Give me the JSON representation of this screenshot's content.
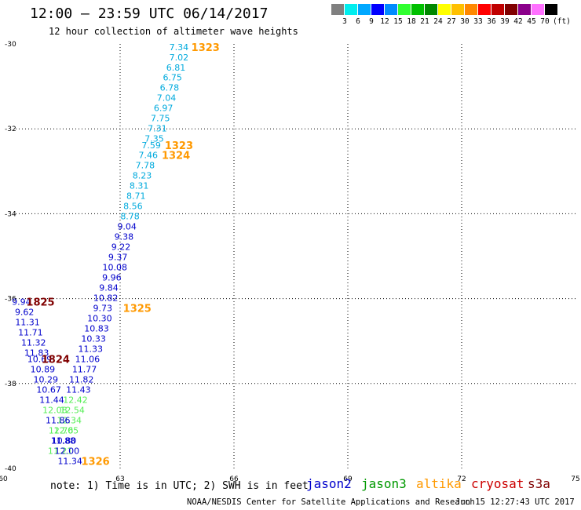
{
  "header": {
    "title": "12:00 – 23:59 UTC 06/14/2017",
    "subtitle": "12 hour collection of altimeter wave heights"
  },
  "color_scale": {
    "labels": [
      "3",
      "6",
      "9",
      "12",
      "15",
      "18",
      "21",
      "24",
      "27",
      "30",
      "33",
      "36",
      "39",
      "42",
      "45",
      "70"
    ],
    "unit": "(ft)",
    "colors": [
      "#808080",
      "#00eeee",
      "#00a8ff",
      "#0000ff",
      "#008bff",
      "#30ff30",
      "#00c000",
      "#008800",
      "#ffff00",
      "#ffc000",
      "#ff8800",
      "#ff0000",
      "#c00000",
      "#800000",
      "#8b008b",
      "#ff70ff",
      "#000000"
    ]
  },
  "footer": {
    "note": "note: 1) Time is in UTC; 2) SWH is in feet",
    "credit": "NOAA/NESDIS Center for Satellite Applications and Research",
    "timestamp": "Jun 15 12:27:43 UTC 2017"
  },
  "legend": [
    {
      "name": "jason2",
      "color": "#0000cc"
    },
    {
      "name": "jason3",
      "color": "#009900"
    },
    {
      "name": "altika",
      "color": "#ff9900"
    },
    {
      "name": "cryosat",
      "color": "#cc0000"
    },
    {
      "name": "s3a",
      "color": "#800000"
    }
  ],
  "chart_data": {
    "type": "scatter",
    "title": "12:00 – 23:59 UTC 06/14/2017",
    "subtitle": "12 hour collection of altimeter wave heights",
    "xlim": [
      60,
      75
    ],
    "ylim": [
      -40,
      -30
    ],
    "xticks": [
      "60",
      "63",
      "66",
      "69",
      "72",
      "75"
    ],
    "yticks": [
      "-30",
      "-32",
      "-34",
      "-36",
      "-38",
      "-40"
    ],
    "grid": true,
    "points": [
      {
        "x": 64.55,
        "y": -30.07,
        "label": "7.34",
        "color": "#00aadd"
      },
      {
        "x": 64.55,
        "y": -30.31,
        "label": "7.02",
        "color": "#00aadd"
      },
      {
        "x": 64.47,
        "y": -30.55,
        "label": "6.81",
        "color": "#00aadd"
      },
      {
        "x": 64.38,
        "y": -30.79,
        "label": "6.75",
        "color": "#00aadd"
      },
      {
        "x": 64.3,
        "y": -31.03,
        "label": "6.78",
        "color": "#00aadd"
      },
      {
        "x": 64.22,
        "y": -31.27,
        "label": "7.04",
        "color": "#00aadd"
      },
      {
        "x": 64.14,
        "y": -31.51,
        "label": "6.97",
        "color": "#00aadd"
      },
      {
        "x": 64.06,
        "y": -31.75,
        "label": "7.75",
        "color": "#00aadd"
      },
      {
        "x": 63.98,
        "y": -31.99,
        "label": "7.31",
        "color": "#00aadd"
      },
      {
        "x": 63.9,
        "y": -32.23,
        "label": "7.35",
        "color": "#00aadd"
      },
      {
        "x": 63.82,
        "y": -32.38,
        "label": "7.59",
        "color": "#00aadd"
      },
      {
        "x": 63.74,
        "y": -32.62,
        "label": "7.46",
        "color": "#00aadd"
      },
      {
        "x": 63.66,
        "y": -32.86,
        "label": "7.78",
        "color": "#00aadd"
      },
      {
        "x": 63.58,
        "y": -33.1,
        "label": "8.23",
        "color": "#00aadd"
      },
      {
        "x": 63.5,
        "y": -33.34,
        "label": "8.31",
        "color": "#00aadd"
      },
      {
        "x": 63.42,
        "y": -33.58,
        "label": "8.71",
        "color": "#00aadd"
      },
      {
        "x": 63.34,
        "y": -33.82,
        "label": "8.56",
        "color": "#00aadd"
      },
      {
        "x": 63.26,
        "y": -34.06,
        "label": "8.78",
        "color": "#00aadd"
      },
      {
        "x": 63.18,
        "y": -34.3,
        "label": "9.04",
        "color": "#0000cc"
      },
      {
        "x": 63.1,
        "y": -34.54,
        "label": "9.38",
        "color": "#0000cc"
      },
      {
        "x": 63.02,
        "y": -34.78,
        "label": "9.22",
        "color": "#0000cc"
      },
      {
        "x": 62.94,
        "y": -35.02,
        "label": "9.37",
        "color": "#0000cc"
      },
      {
        "x": 62.86,
        "y": -35.26,
        "label": "10.08",
        "color": "#0000cc"
      },
      {
        "x": 62.78,
        "y": -35.5,
        "label": "9.96",
        "color": "#0000cc"
      },
      {
        "x": 62.7,
        "y": -35.74,
        "label": "9.84",
        "color": "#0000cc"
      },
      {
        "x": 62.62,
        "y": -35.98,
        "label": "10.82",
        "color": "#0000cc"
      },
      {
        "x": 62.54,
        "y": -36.22,
        "label": "9.73",
        "color": "#0000cc"
      },
      {
        "x": 62.46,
        "y": -36.46,
        "label": "10.30",
        "color": "#0000cc"
      },
      {
        "x": 62.38,
        "y": -36.7,
        "label": "10.83",
        "color": "#0000cc"
      },
      {
        "x": 62.3,
        "y": -36.94,
        "label": "10.33",
        "color": "#0000cc"
      },
      {
        "x": 62.22,
        "y": -37.18,
        "label": "11.33",
        "color": "#0000cc"
      },
      {
        "x": 62.14,
        "y": -37.42,
        "label": "11.06",
        "color": "#0000cc"
      },
      {
        "x": 62.06,
        "y": -37.66,
        "label": "11.77",
        "color": "#0000cc"
      },
      {
        "x": 61.98,
        "y": -37.9,
        "label": "11.82",
        "color": "#0000cc"
      },
      {
        "x": 61.9,
        "y": -38.14,
        "label": "11.43",
        "color": "#0000cc"
      },
      {
        "x": 61.82,
        "y": -38.38,
        "label": "12.42",
        "color": "#55ee55"
      },
      {
        "x": 61.74,
        "y": -38.62,
        "label": "12.54",
        "color": "#55ee55"
      },
      {
        "x": 61.66,
        "y": -38.86,
        "label": "12.34",
        "color": "#55ee55"
      },
      {
        "x": 61.58,
        "y": -39.1,
        "label": "12.05",
        "color": "#55ee55"
      },
      {
        "x": 61.5,
        "y": -39.34,
        "label": "11.88",
        "color": "#0000cc"
      },
      {
        "x": 61.42,
        "y": -39.58,
        "label": "11.21",
        "color": "#55ee55"
      },
      {
        "x": 60.4,
        "y": -36.07,
        "label": "9.94",
        "color": "#0000cc"
      },
      {
        "x": 60.48,
        "y": -36.31,
        "label": "9.62",
        "color": "#0000cc"
      },
      {
        "x": 60.56,
        "y": -36.55,
        "label": "11.31",
        "color": "#0000cc"
      },
      {
        "x": 60.64,
        "y": -36.79,
        "label": "11.71",
        "color": "#0000cc"
      },
      {
        "x": 60.72,
        "y": -37.03,
        "label": "11.32",
        "color": "#0000cc"
      },
      {
        "x": 60.8,
        "y": -37.27,
        "label": "11.83",
        "color": "#0000cc"
      },
      {
        "x": 60.88,
        "y": -37.42,
        "label": "10.69",
        "color": "#0000cc"
      },
      {
        "x": 60.96,
        "y": -37.66,
        "label": "10.89",
        "color": "#0000cc"
      },
      {
        "x": 61.04,
        "y": -37.9,
        "label": "10.29",
        "color": "#0000cc"
      },
      {
        "x": 61.12,
        "y": -38.14,
        "label": "10.67",
        "color": "#0000cc"
      },
      {
        "x": 61.2,
        "y": -38.38,
        "label": "11.44",
        "color": "#0000cc"
      },
      {
        "x": 61.28,
        "y": -38.62,
        "label": "12.08",
        "color": "#55ee55"
      },
      {
        "x": 61.36,
        "y": -38.86,
        "label": "11.86",
        "color": "#0000cc"
      },
      {
        "x": 61.44,
        "y": -39.1,
        "label": "12.76",
        "color": "#55ee55"
      },
      {
        "x": 61.52,
        "y": -39.34,
        "label": "10.80",
        "color": "#0000cc"
      },
      {
        "x": 61.6,
        "y": -39.58,
        "label": "12.00",
        "color": "#0000cc"
      },
      {
        "x": 61.68,
        "y": -39.82,
        "label": "11.34",
        "color": "#0000cc"
      }
    ],
    "annotations": [
      {
        "x": 65.25,
        "y": -30.07,
        "text": "1323",
        "color": "#ff9900"
      },
      {
        "x": 64.55,
        "y": -32.38,
        "text": "1323",
        "color": "#ff9900"
      },
      {
        "x": 64.47,
        "y": -32.62,
        "text": "1324",
        "color": "#ff9900"
      },
      {
        "x": 63.45,
        "y": -36.22,
        "text": "1325",
        "color": "#ff9900"
      },
      {
        "x": 62.35,
        "y": -39.82,
        "text": "1326",
        "color": "#ff9900"
      },
      {
        "x": 60.9,
        "y": -36.07,
        "text": "1825",
        "color": "#800000"
      },
      {
        "x": 61.3,
        "y": -37.42,
        "text": "1824",
        "color": "#800000"
      }
    ]
  }
}
